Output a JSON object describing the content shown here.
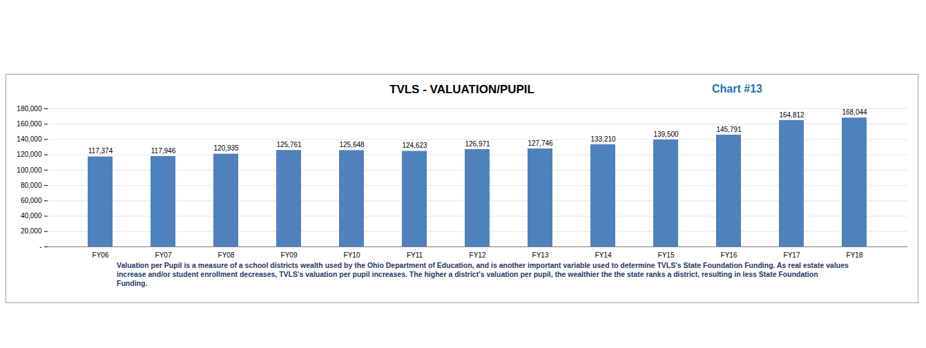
{
  "chart_data": {
    "type": "bar",
    "title": "TVLS - VALUATION/PUPIL",
    "annotations": [
      "Chart #13"
    ],
    "caption": "Valuation per Pupil is a measure of a school districts wealth used by the Ohio Department of Education, and is another important variable used to determine TVLS's State Foundation Funding.  As real estate values increase and/or student enrollment decreases, TVLS's valuation per pupil increases.  The higher a district's valuation per pupil, the wealthier the the state ranks a district, resulting in less State Foundation Funding.",
    "categories": [
      "FY06",
      "FY07",
      "FY08",
      "FY09",
      "FY10",
      "FY11",
      "FY12",
      "FY13",
      "FY14",
      "FY15",
      "FY16",
      "FY17",
      "FY18"
    ],
    "values": [
      117374,
      117946,
      120935,
      125761,
      125648,
      124623,
      126971,
      127746,
      133210,
      139500,
      145791,
      164812,
      168044
    ],
    "value_labels": [
      "117,374",
      "117,946",
      "120,935",
      "125,761",
      "125,648",
      "124,623",
      "126,971",
      "127,746",
      "133,210",
      "139,500",
      "145,791",
      "164,812",
      "168,044"
    ],
    "color": "#4f81bd",
    "ylim": [
      0,
      180000
    ],
    "yticks": [
      {
        "value": 0,
        "label": "-"
      },
      {
        "value": 20000,
        "label": "20,000"
      },
      {
        "value": 40000,
        "label": "40,000"
      },
      {
        "value": 60000,
        "label": "60,000"
      },
      {
        "value": 80000,
        "label": "80,000"
      },
      {
        "value": 100000,
        "label": "100,000"
      },
      {
        "value": 120000,
        "label": "120,000"
      },
      {
        "value": 140000,
        "label": "140,000"
      },
      {
        "value": 160000,
        "label": "160,000"
      },
      {
        "value": 180000,
        "label": "180,000"
      }
    ],
    "grid": true,
    "data_labels": true
  }
}
